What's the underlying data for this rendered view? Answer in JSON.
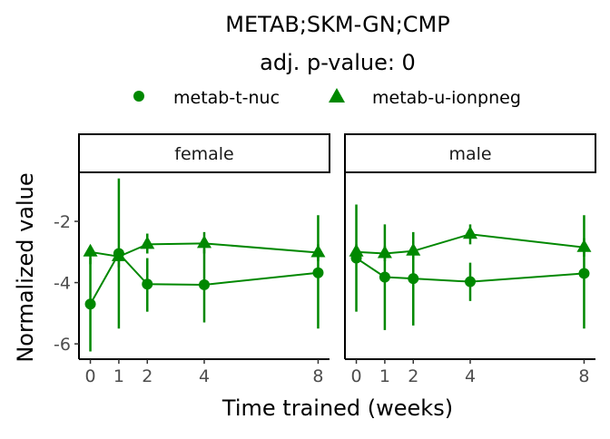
{
  "chart_data": {
    "type": "line",
    "title": "METAB;SKM-GN;CMP",
    "subtitle": "adj. p-value: 0",
    "xlabel": "Time trained (weeks)",
    "ylabel": "Normalized value",
    "x_ticks": [
      0,
      1,
      2,
      4,
      8
    ],
    "y_ticks": [
      -2,
      -4,
      -6
    ],
    "ylim": [
      -6.5,
      -0.4
    ],
    "color": "#008800",
    "legend": {
      "position": "top",
      "entries": [
        {
          "label": "metab-t-nuc",
          "shape": "circle"
        },
        {
          "label": "metab-u-ionpneg",
          "shape": "triangle"
        }
      ]
    },
    "panels": [
      {
        "strip": "female",
        "series": [
          {
            "name": "metab-t-nuc",
            "shape": "circle",
            "x": [
              0,
              1,
              2,
              4,
              8
            ],
            "y": [
              -4.7,
              -3.05,
              -4.05,
              -4.07,
              -3.68
            ],
            "ymin": [
              -6.25,
              -5.5,
              -4.95,
              -5.3,
              -5.5
            ],
            "ymax": [
              -3.2,
              -0.6,
              -3.2,
              -2.9,
              -1.8
            ]
          },
          {
            "name": "metab-u-ionpneg",
            "shape": "triangle",
            "x": [
              0,
              1,
              2,
              4,
              8
            ],
            "y": [
              -3.0,
              -3.15,
              -2.75,
              -2.72,
              -3.02
            ],
            "ymin": [
              -3.4,
              -3.5,
              -3.05,
              -3.05,
              -3.3
            ],
            "ymax": [
              -2.8,
              -2.9,
              -2.4,
              -2.35,
              -2.75
            ]
          }
        ]
      },
      {
        "strip": "male",
        "series": [
          {
            "name": "metab-t-nuc",
            "shape": "circle",
            "x": [
              0,
              1,
              2,
              4,
              8
            ],
            "y": [
              -3.2,
              -3.82,
              -3.87,
              -3.97,
              -3.7
            ],
            "ymin": [
              -4.95,
              -5.55,
              -5.4,
              -4.6,
              -5.5
            ],
            "ymax": [
              -1.45,
              -2.1,
              -2.35,
              -3.35,
              -1.8
            ]
          },
          {
            "name": "metab-u-ionpneg",
            "shape": "triangle",
            "x": [
              0,
              1,
              2,
              4,
              8
            ],
            "y": [
              -3.0,
              -3.05,
              -2.97,
              -2.42,
              -2.85
            ],
            "ymin": [
              -3.3,
              -3.3,
              -3.25,
              -2.75,
              -3.15
            ],
            "ymax": [
              -2.75,
              -2.8,
              -2.65,
              -2.1,
              -2.55
            ]
          }
        ]
      }
    ]
  }
}
